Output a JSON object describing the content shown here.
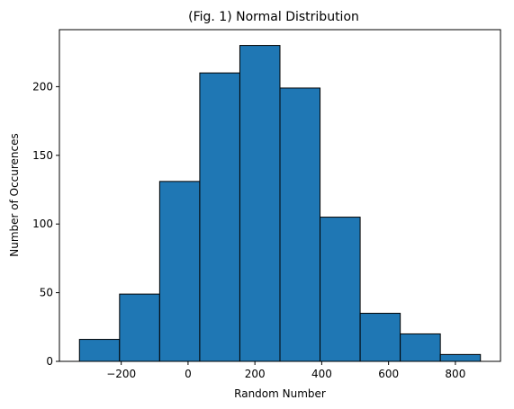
{
  "chart_data": {
    "type": "bar",
    "title": "(Fig. 1) Normal Distribution",
    "xlabel": "Random Number",
    "ylabel": "Number of Occurences",
    "bins": [
      {
        "start": -325,
        "end": -205,
        "count": 16
      },
      {
        "start": -205,
        "end": -85,
        "count": 49
      },
      {
        "start": -85,
        "end": 35,
        "count": 131
      },
      {
        "start": 35,
        "end": 155,
        "count": 210
      },
      {
        "start": 155,
        "end": 275,
        "count": 230
      },
      {
        "start": 275,
        "end": 395,
        "count": 199
      },
      {
        "start": 395,
        "end": 515,
        "count": 105
      },
      {
        "start": 515,
        "end": 635,
        "count": 35
      },
      {
        "start": 635,
        "end": 755,
        "count": 20
      },
      {
        "start": 755,
        "end": 875,
        "count": 5
      }
    ],
    "xlim": [
      -385,
      935
    ],
    "ylim": [
      0,
      241.5
    ],
    "xticks": [
      -200,
      0,
      200,
      400,
      600,
      800
    ],
    "xtick_labels": [
      "−200",
      "0",
      "200",
      "400",
      "600",
      "800"
    ],
    "yticks": [
      0,
      50,
      100,
      150,
      200
    ],
    "ytick_labels": [
      "0",
      "50",
      "100",
      "150",
      "200"
    ],
    "bar_color": "#1f77b4",
    "edge_color": "#000000",
    "grid": false
  }
}
